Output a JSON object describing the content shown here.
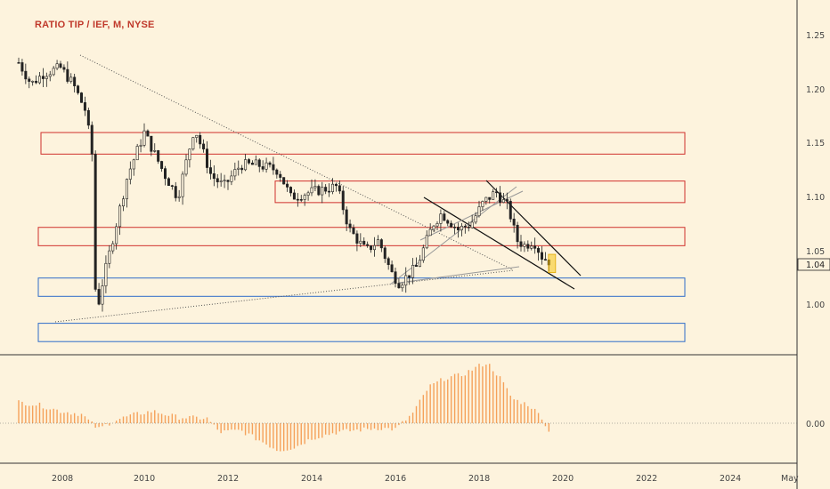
{
  "header": {
    "title": "RATIO TIP / IEF, M, NYSE"
  },
  "colors": {
    "background": "#fdf3dd",
    "candle": "#222222",
    "red_zone": "#d0312d",
    "blue_zone": "#2f6cc9",
    "histogram": "#f5a15a",
    "highlight": "#f5c518"
  },
  "price_axis": {
    "ticks": [
      "1.25",
      "1.20",
      "1.15",
      "1.10",
      "1.05",
      "1.00"
    ],
    "last_price": "1.04"
  },
  "indicator_axis": {
    "ticks": [
      "0.00"
    ]
  },
  "time_axis": {
    "ticks": [
      "2008",
      "2010",
      "2012",
      "2014",
      "2016",
      "2018",
      "2020",
      "2022",
      "2024",
      "May"
    ]
  },
  "chart_data": {
    "type": "candlestick",
    "title": "RATIO TIP / IEF, M, NYSE",
    "xlabel": "",
    "ylabel": "",
    "ylim": [
      0.96,
      1.28
    ],
    "last_value": 1.04,
    "series_points": [
      {
        "year": 2007.0,
        "close": 1.225
      },
      {
        "year": 2007.3,
        "close": 1.205
      },
      {
        "year": 2007.6,
        "close": 1.215
      },
      {
        "year": 2008.0,
        "close": 1.22
      },
      {
        "year": 2008.3,
        "close": 1.205
      },
      {
        "year": 2008.6,
        "close": 1.18
      },
      {
        "year": 2008.75,
        "close": 1.14
      },
      {
        "year": 2008.85,
        "close": 0.99
      },
      {
        "year": 2009.0,
        "close": 1.02
      },
      {
        "year": 2009.3,
        "close": 1.07
      },
      {
        "year": 2009.6,
        "close": 1.12
      },
      {
        "year": 2010.0,
        "close": 1.16
      },
      {
        "year": 2010.5,
        "close": 1.12
      },
      {
        "year": 2010.8,
        "close": 1.1
      },
      {
        "year": 2011.2,
        "close": 1.165
      },
      {
        "year": 2011.6,
        "close": 1.12
      },
      {
        "year": 2011.9,
        "close": 1.11
      },
      {
        "year": 2012.3,
        "close": 1.13
      },
      {
        "year": 2012.7,
        "close": 1.13
      },
      {
        "year": 2013.2,
        "close": 1.125
      },
      {
        "year": 2013.5,
        "close": 1.1
      },
      {
        "year": 2014.0,
        "close": 1.105
      },
      {
        "year": 2014.6,
        "close": 1.11
      },
      {
        "year": 2014.9,
        "close": 1.07
      },
      {
        "year": 2015.3,
        "close": 1.05
      },
      {
        "year": 2015.6,
        "close": 1.06
      },
      {
        "year": 2015.9,
        "close": 1.03
      },
      {
        "year": 2016.1,
        "close": 1.02
      },
      {
        "year": 2016.5,
        "close": 1.035
      },
      {
        "year": 2016.9,
        "close": 1.075
      },
      {
        "year": 2017.1,
        "close": 1.085
      },
      {
        "year": 2017.5,
        "close": 1.07
      },
      {
        "year": 2017.8,
        "close": 1.075
      },
      {
        "year": 2018.1,
        "close": 1.095
      },
      {
        "year": 2018.4,
        "close": 1.105
      },
      {
        "year": 2018.7,
        "close": 1.09
      },
      {
        "year": 2018.9,
        "close": 1.06
      },
      {
        "year": 2019.1,
        "close": 1.055
      },
      {
        "year": 2019.3,
        "close": 1.06
      },
      {
        "year": 2019.5,
        "close": 1.045
      },
      {
        "year": 2019.7,
        "close": 1.04
      }
    ],
    "zones": [
      {
        "color": "red",
        "y_low": 1.14,
        "y_high": 1.16
      },
      {
        "color": "red",
        "y_low": 1.095,
        "y_high": 1.115
      },
      {
        "color": "red",
        "y_low": 1.055,
        "y_high": 1.072
      },
      {
        "color": "blue",
        "y_low": 1.008,
        "y_high": 1.025
      },
      {
        "color": "blue",
        "y_low": 0.966,
        "y_high": 0.983
      }
    ],
    "histogram_points": [
      {
        "year": 2007.0,
        "value": 0.35
      },
      {
        "year": 2007.5,
        "value": 0.3
      },
      {
        "year": 2008.0,
        "value": 0.2
      },
      {
        "year": 2008.5,
        "value": 0.15
      },
      {
        "year": 2008.9,
        "value": -0.1
      },
      {
        "year": 2009.3,
        "value": 0.05
      },
      {
        "year": 2009.8,
        "value": 0.15
      },
      {
        "year": 2010.2,
        "value": 0.2
      },
      {
        "year": 2010.8,
        "value": 0.1
      },
      {
        "year": 2011.5,
        "value": 0.08
      },
      {
        "year": 2011.8,
        "value": -0.15
      },
      {
        "year": 2012.3,
        "value": -0.12
      },
      {
        "year": 2012.8,
        "value": -0.3
      },
      {
        "year": 2013.2,
        "value": -0.45
      },
      {
        "year": 2013.6,
        "value": -0.4
      },
      {
        "year": 2014.0,
        "value": -0.25
      },
      {
        "year": 2014.6,
        "value": -0.15
      },
      {
        "year": 2015.0,
        "value": -0.12
      },
      {
        "year": 2015.6,
        "value": -0.08
      },
      {
        "year": 2016.0,
        "value": -0.1
      },
      {
        "year": 2016.4,
        "value": 0.15
      },
      {
        "year": 2016.8,
        "value": 0.6
      },
      {
        "year": 2017.2,
        "value": 0.75
      },
      {
        "year": 2017.6,
        "value": 0.8
      },
      {
        "year": 2018.0,
        "value": 0.95
      },
      {
        "year": 2018.2,
        "value": 1.0
      },
      {
        "year": 2018.5,
        "value": 0.75
      },
      {
        "year": 2018.8,
        "value": 0.4
      },
      {
        "year": 2019.2,
        "value": 0.3
      },
      {
        "year": 2019.5,
        "value": 0.1
      },
      {
        "year": 2019.7,
        "value": -0.2
      }
    ]
  }
}
